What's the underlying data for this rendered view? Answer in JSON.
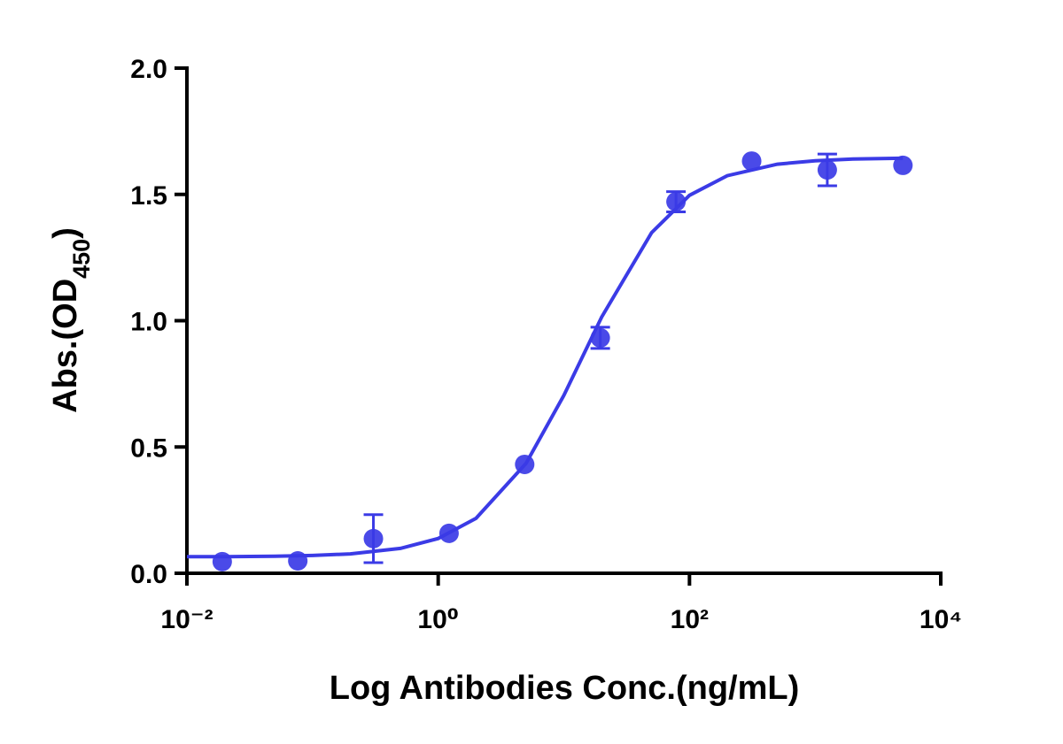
{
  "chart_data": {
    "type": "scatter",
    "x_label": "Log Antibodies Conc.(ng/mL)",
    "y_label": [
      "Abs.(OD",
      "450",
      ")"
    ],
    "x_scale": "log",
    "xlim": [
      0.01,
      10000
    ],
    "xticks": [
      {
        "value": 0.01,
        "label": "10⁻²"
      },
      {
        "value": 1,
        "label": "10⁰"
      },
      {
        "value": 100,
        "label": "10²"
      },
      {
        "value": 10000,
        "label": "10⁴"
      }
    ],
    "ylim": [
      0,
      2
    ],
    "yticks": [
      {
        "value": 0,
        "label": "0.0"
      },
      0.5,
      {
        "value": 1,
        "label": "1.0"
      },
      1.5,
      {
        "value": 2,
        "label": "2.0"
      }
    ],
    "color": "#3b3be6",
    "points": {
      "x": [
        0.0191,
        0.0763,
        0.305,
        1.22,
        4.88,
        19.5,
        78.1,
        312.5,
        1250,
        5000
      ],
      "values": [
        0.046,
        0.049,
        0.137,
        0.158,
        0.431,
        0.932,
        1.471,
        1.632,
        1.597,
        1.615
      ],
      "errors": [
        null,
        null,
        0.095,
        null,
        null,
        0.042,
        0.04,
        null,
        0.063,
        null
      ]
    },
    "curve": {
      "x": [
        0.01,
        0.02,
        0.05,
        0.1,
        0.2,
        0.5,
        1,
        2,
        5,
        10,
        20,
        50,
        100,
        200,
        500,
        1000,
        2000,
        5000
      ],
      "values": [
        0.0654,
        0.0658,
        0.0674,
        0.0704,
        0.0768,
        0.0985,
        0.1375,
        0.2174,
        0.4352,
        0.7042,
        1.0145,
        1.3485,
        1.4962,
        1.5741,
        1.6195,
        1.6334,
        1.6398,
        1.6432
      ]
    }
  }
}
